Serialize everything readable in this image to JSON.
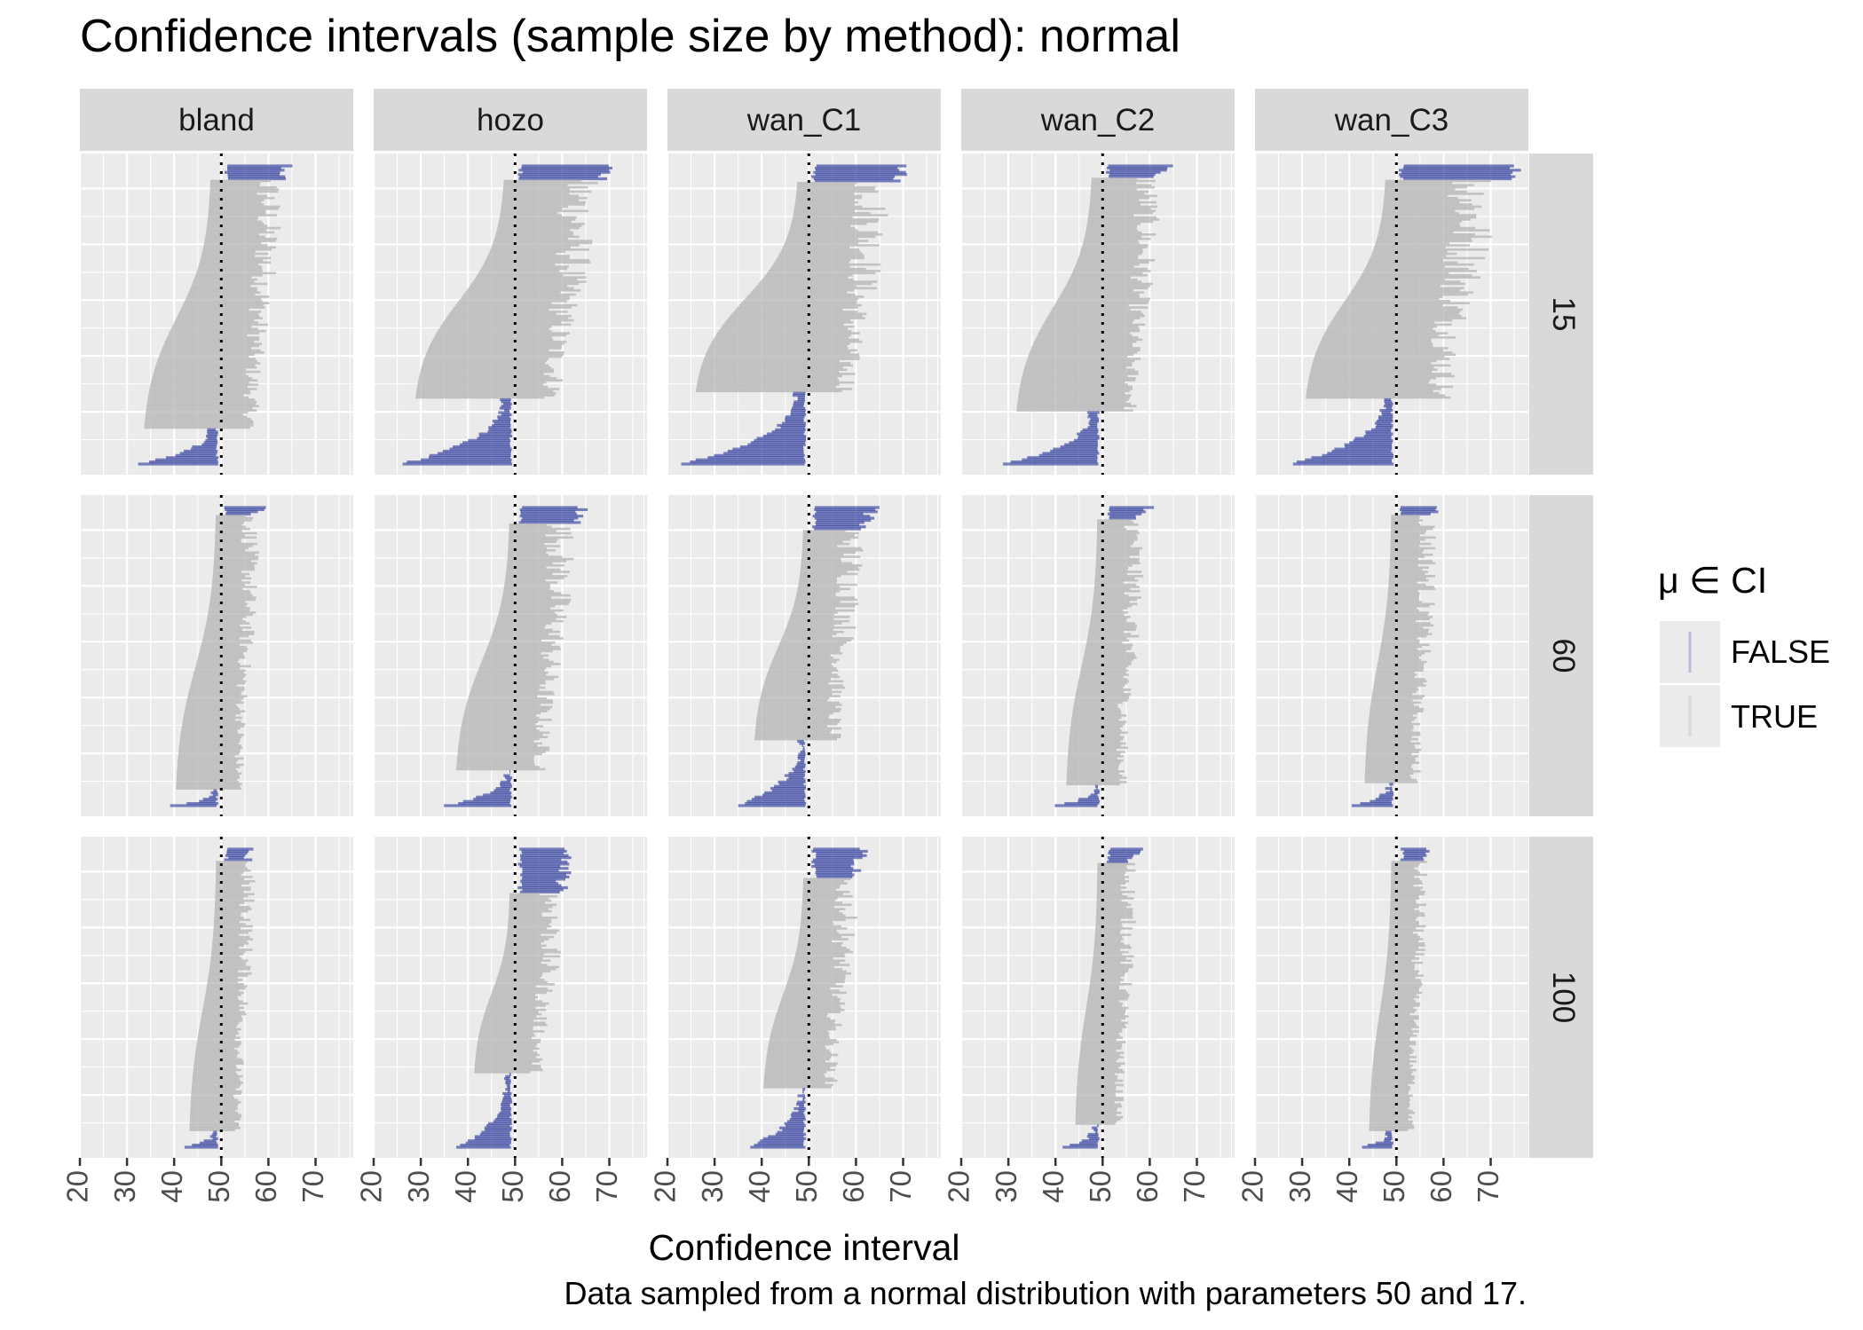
{
  "chart_data": {
    "type": "interval",
    "title": "Confidence intervals (sample size by method): normal",
    "xlabel": "Confidence interval",
    "caption": "Data sampled from a normal distribution with parameters 50 and 17.",
    "columns": [
      "bland",
      "hozo",
      "wan_C1",
      "wan_C2",
      "wan_C3"
    ],
    "rows": [
      "15",
      "60",
      "100"
    ],
    "x_ticks": [
      20,
      30,
      40,
      50,
      60,
      70
    ],
    "xlim": [
      20,
      78
    ],
    "reference_line_x": 50,
    "legend": {
      "title": "μ ∈ CI",
      "position": "right",
      "entries": [
        "FALSE",
        "TRUE"
      ]
    },
    "colors": {
      "false_interval": "#27339a",
      "true_interval": "#b4b4b4",
      "panel_background": "#ebebeb",
      "strip_background": "#d9d9d9"
    },
    "panels": [
      {
        "method": "bland",
        "n": "15",
        "lo_min": 30,
        "lo_max": 48,
        "hi_min": 52,
        "hi_max": 66,
        "false_top": 0.05,
        "false_bottom": 0.12
      },
      {
        "method": "hozo",
        "n": "15",
        "lo_min": 25,
        "lo_max": 48,
        "hi_min": 52,
        "hi_max": 72,
        "false_top": 0.05,
        "false_bottom": 0.22
      },
      {
        "method": "wan_C1",
        "n": "15",
        "lo_min": 22,
        "lo_max": 48,
        "hi_min": 52,
        "hi_max": 72,
        "false_top": 0.06,
        "false_bottom": 0.24
      },
      {
        "method": "wan_C2",
        "n": "15",
        "lo_min": 28,
        "lo_max": 48,
        "hi_min": 52,
        "hi_max": 65,
        "false_top": 0.04,
        "false_bottom": 0.18
      },
      {
        "method": "wan_C3",
        "n": "15",
        "lo_min": 27,
        "lo_max": 48,
        "hi_min": 52,
        "hi_max": 77,
        "false_top": 0.05,
        "false_bottom": 0.22
      },
      {
        "method": "bland",
        "n": "60",
        "lo_min": 37,
        "lo_max": 49,
        "hi_min": 51,
        "hi_max": 60,
        "false_top": 0.03,
        "false_bottom": 0.06
      },
      {
        "method": "hozo",
        "n": "60",
        "lo_min": 34,
        "lo_max": 49,
        "hi_min": 51,
        "hi_max": 66,
        "false_top": 0.06,
        "false_bottom": 0.12
      },
      {
        "method": "wan_C1",
        "n": "60",
        "lo_min": 35,
        "lo_max": 49,
        "hi_min": 51,
        "hi_max": 65,
        "false_top": 0.08,
        "false_bottom": 0.22
      },
      {
        "method": "wan_C2",
        "n": "60",
        "lo_min": 39,
        "lo_max": 49,
        "hi_min": 51,
        "hi_max": 61,
        "false_top": 0.04,
        "false_bottom": 0.07
      },
      {
        "method": "wan_C3",
        "n": "60",
        "lo_min": 40,
        "lo_max": 49,
        "hi_min": 51,
        "hi_max": 61,
        "false_top": 0.03,
        "false_bottom": 0.08
      },
      {
        "method": "bland",
        "n": "100",
        "lo_min": 40,
        "lo_max": 49,
        "hi_min": 51,
        "hi_max": 59,
        "false_top": 0.04,
        "false_bottom": 0.06
      },
      {
        "method": "hozo",
        "n": "100",
        "lo_min": 38,
        "lo_max": 49,
        "hi_min": 51,
        "hi_max": 63,
        "false_top": 0.15,
        "false_bottom": 0.25
      },
      {
        "method": "wan_C1",
        "n": "100",
        "lo_min": 37,
        "lo_max": 49,
        "hi_min": 51,
        "hi_max": 63,
        "false_top": 0.1,
        "false_bottom": 0.2
      },
      {
        "method": "wan_C2",
        "n": "100",
        "lo_min": 41,
        "lo_max": 49,
        "hi_min": 51,
        "hi_max": 59,
        "false_top": 0.05,
        "false_bottom": 0.08
      },
      {
        "method": "wan_C3",
        "n": "100",
        "lo_min": 41,
        "lo_max": 49,
        "hi_min": 51,
        "hi_max": 58,
        "false_top": 0.04,
        "false_bottom": 0.06
      }
    ]
  }
}
